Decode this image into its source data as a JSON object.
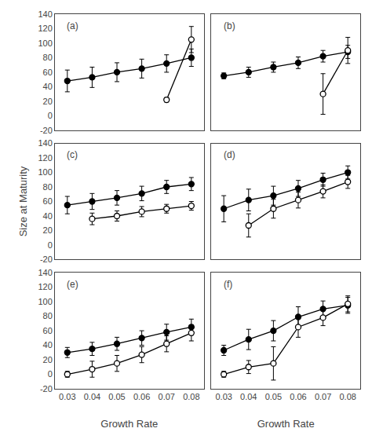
{
  "chart_data": [
    {
      "type": "line",
      "title": "(a)",
      "xlim": [
        0.025,
        0.085
      ],
      "xticks": [
        0.03,
        0.04,
        0.05,
        0.06,
        0.07,
        0.08
      ],
      "ylim": [
        -20,
        140
      ],
      "yticks": [
        -20,
        0,
        20,
        40,
        60,
        80,
        100,
        120,
        140
      ],
      "grid": false,
      "tick_labels": "y",
      "series": [
        {
          "marker": "filled",
          "color": "black",
          "x": [
            0.03,
            0.04,
            0.05,
            0.06,
            0.07,
            0.08
          ],
          "values": [
            48,
            53,
            60,
            65,
            72,
            80
          ],
          "errors": [
            15,
            14,
            13,
            13,
            12,
            12
          ]
        },
        {
          "marker": "open",
          "color": "black",
          "x": [
            0.07,
            0.08
          ],
          "values": [
            22,
            105
          ],
          "errors": [
            3,
            18
          ]
        }
      ]
    },
    {
      "type": "line",
      "title": "(b)",
      "xlim": [
        0.025,
        0.085
      ],
      "xticks": [
        0.03,
        0.04,
        0.05,
        0.06,
        0.07,
        0.08
      ],
      "ylim": [
        -20,
        140
      ],
      "yticks": [
        -20,
        0,
        20,
        40,
        60,
        80,
        100,
        120,
        140
      ],
      "grid": false,
      "tick_labels": false,
      "series": [
        {
          "marker": "filled",
          "color": "black",
          "x": [
            0.03,
            0.04,
            0.05,
            0.06,
            0.07,
            0.08
          ],
          "values": [
            55,
            60,
            67,
            73,
            82,
            88
          ],
          "errors": [
            4,
            7,
            7,
            8,
            8,
            9
          ]
        },
        {
          "marker": "open",
          "color": "black",
          "x": [
            0.07,
            0.08
          ],
          "values": [
            30,
            90
          ],
          "errors": [
            28,
            18
          ]
        }
      ]
    },
    {
      "type": "line",
      "title": "(c)",
      "ylabel": "Size at Maturity",
      "xlim": [
        0.025,
        0.085
      ],
      "xticks": [
        0.03,
        0.04,
        0.05,
        0.06,
        0.07,
        0.08
      ],
      "ylim": [
        -20,
        140
      ],
      "yticks": [
        -20,
        0,
        20,
        40,
        60,
        80,
        100,
        120,
        140
      ],
      "grid": false,
      "tick_labels": "y",
      "series": [
        {
          "marker": "filled",
          "color": "black",
          "x": [
            0.03,
            0.04,
            0.05,
            0.06,
            0.07,
            0.08
          ],
          "values": [
            55,
            60,
            65,
            71,
            80,
            84
          ],
          "errors": [
            12,
            11,
            10,
            10,
            9,
            9
          ]
        },
        {
          "marker": "open",
          "color": "black",
          "x": [
            0.04,
            0.05,
            0.06,
            0.07,
            0.08
          ],
          "values": [
            36,
            40,
            46,
            50,
            54
          ],
          "errors": [
            8,
            7,
            7,
            6,
            6
          ]
        }
      ]
    },
    {
      "type": "line",
      "title": "(d)",
      "xlim": [
        0.025,
        0.085
      ],
      "xticks": [
        0.03,
        0.04,
        0.05,
        0.06,
        0.07,
        0.08
      ],
      "ylim": [
        -20,
        140
      ],
      "yticks": [
        -20,
        0,
        20,
        40,
        60,
        80,
        100,
        120,
        140
      ],
      "grid": false,
      "tick_labels": false,
      "series": [
        {
          "marker": "filled",
          "color": "black",
          "x": [
            0.03,
            0.04,
            0.05,
            0.06,
            0.07,
            0.08
          ],
          "values": [
            50,
            62,
            68,
            78,
            90,
            100
          ],
          "errors": [
            18,
            15,
            13,
            11,
            9,
            9
          ]
        },
        {
          "marker": "open",
          "color": "black",
          "x": [
            0.04,
            0.05,
            0.06,
            0.07,
            0.08
          ],
          "values": [
            27,
            50,
            62,
            74,
            87
          ],
          "errors": [
            16,
            13,
            11,
            9,
            9
          ]
        }
      ]
    },
    {
      "type": "line",
      "title": "(e)",
      "xlabel": "Growth Rate",
      "xlim": [
        0.025,
        0.085
      ],
      "xticks": [
        0.03,
        0.04,
        0.05,
        0.06,
        0.07,
        0.08
      ],
      "ylim": [
        -20,
        140
      ],
      "yticks": [
        -20,
        0,
        20,
        40,
        60,
        80,
        100,
        120,
        140
      ],
      "grid": false,
      "series": [
        {
          "marker": "filled",
          "color": "black",
          "x": [
            0.03,
            0.04,
            0.05,
            0.06,
            0.07,
            0.08
          ],
          "values": [
            30,
            35,
            42,
            50,
            58,
            65
          ],
          "errors": [
            7,
            9,
            9,
            10,
            11,
            11
          ]
        },
        {
          "marker": "open",
          "color": "black",
          "x": [
            0.03,
            0.04,
            0.05,
            0.06,
            0.07,
            0.08
          ],
          "values": [
            0,
            7,
            15,
            27,
            42,
            57
          ],
          "errors": [
            4,
            11,
            11,
            11,
            11,
            11
          ]
        }
      ]
    },
    {
      "type": "line",
      "title": "(f)",
      "xlabel": "Growth Rate",
      "xlim": [
        0.025,
        0.085
      ],
      "xticks": [
        0.03,
        0.04,
        0.05,
        0.06,
        0.07,
        0.08
      ],
      "ylim": [
        -20,
        140
      ],
      "yticks": [
        -20,
        0,
        20,
        40,
        60,
        80,
        100,
        120,
        140
      ],
      "grid": false,
      "tick_labels": "x",
      "series": [
        {
          "marker": "filled",
          "color": "black",
          "x": [
            0.03,
            0.04,
            0.05,
            0.06,
            0.07,
            0.08
          ],
          "values": [
            33,
            48,
            60,
            79,
            90,
            95
          ],
          "errors": [
            7,
            14,
            14,
            14,
            11,
            11
          ]
        },
        {
          "marker": "open",
          "color": "black",
          "x": [
            0.03,
            0.04,
            0.05,
            0.06,
            0.07,
            0.08
          ],
          "values": [
            0,
            10,
            15,
            65,
            78,
            97
          ],
          "errors": [
            4,
            9,
            23,
            14,
            11,
            11
          ]
        }
      ]
    }
  ]
}
